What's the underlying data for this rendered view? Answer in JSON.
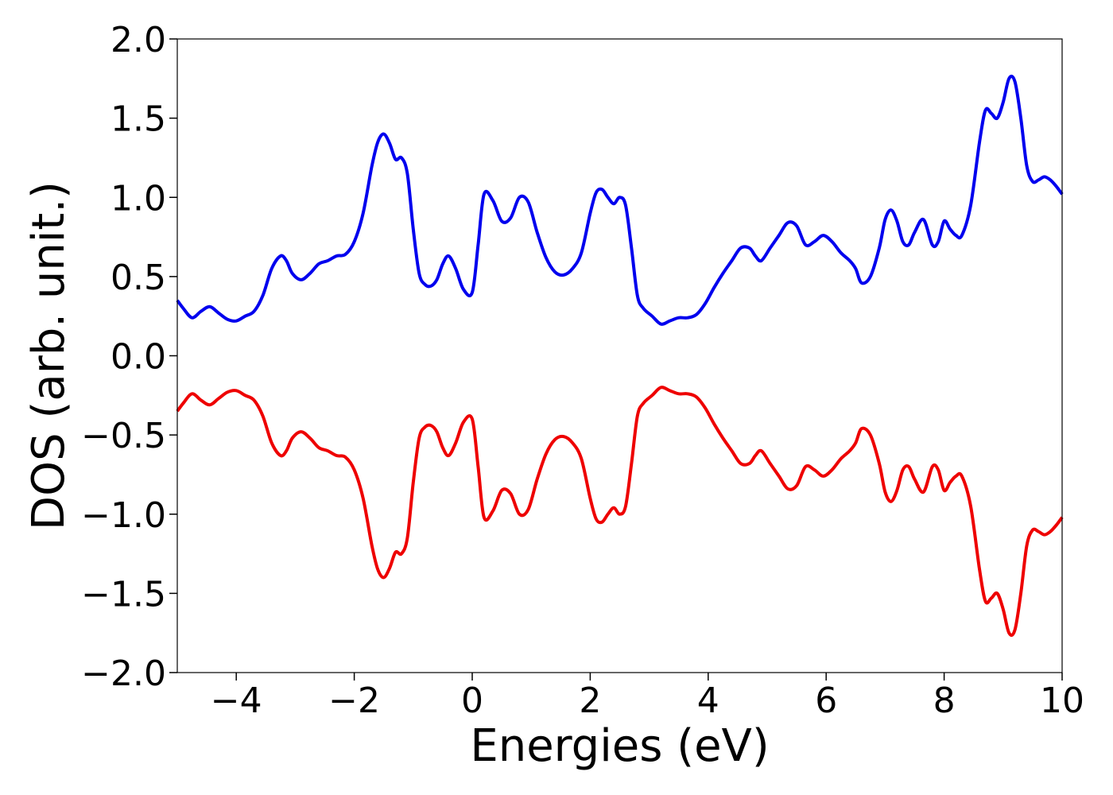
{
  "chart_data": {
    "type": "line",
    "title": "",
    "xlabel": "Energies (eV)",
    "ylabel": "DOS (arb. unit.)",
    "xlim": [
      -5,
      10
    ],
    "ylim": [
      -2.0,
      2.0
    ],
    "xticks": [
      -4,
      -2,
      0,
      2,
      4,
      6,
      8,
      10
    ],
    "xtick_labels": [
      "−4",
      "−2",
      "0",
      "2",
      "4",
      "6",
      "8",
      "10"
    ],
    "yticks": [
      2.0,
      1.5,
      1.0,
      0.5,
      0.0,
      -0.5,
      -1.0,
      -1.5,
      -2.0
    ],
    "ytick_labels": [
      "2.0",
      "1.5",
      "1.0",
      "0.5",
      "0.0",
      "−0.5",
      "−1.0",
      "−1.5",
      "−2.0"
    ],
    "grid": false,
    "legend": "none",
    "series": [
      {
        "color": "#0000ee",
        "x": [
          -5.0,
          -4.9,
          -4.75,
          -4.6,
          -4.45,
          -4.3,
          -4.15,
          -4.0,
          -3.85,
          -3.7,
          -3.55,
          -3.4,
          -3.25,
          -3.15,
          -3.05,
          -2.9,
          -2.75,
          -2.6,
          -2.45,
          -2.3,
          -2.15,
          -2.0,
          -1.85,
          -1.7,
          -1.6,
          -1.5,
          -1.4,
          -1.3,
          -1.2,
          -1.1,
          -1.0,
          -0.9,
          -0.8,
          -0.7,
          -0.6,
          -0.5,
          -0.4,
          -0.28,
          -0.15,
          0.0,
          0.1,
          0.2,
          0.35,
          0.5,
          0.65,
          0.8,
          0.95,
          1.1,
          1.25,
          1.4,
          1.55,
          1.7,
          1.85,
          2.0,
          2.1,
          2.2,
          2.3,
          2.4,
          2.5,
          2.6,
          2.7,
          2.8,
          2.9,
          3.05,
          3.2,
          3.35,
          3.5,
          3.65,
          3.8,
          3.95,
          4.1,
          4.25,
          4.4,
          4.55,
          4.7,
          4.8,
          4.9,
          5.05,
          5.2,
          5.35,
          5.5,
          5.65,
          5.8,
          5.95,
          6.1,
          6.25,
          6.4,
          6.5,
          6.6,
          6.75,
          6.9,
          7.0,
          7.1,
          7.2,
          7.3,
          7.4,
          7.5,
          7.65,
          7.8,
          7.9,
          8.0,
          8.1,
          8.2,
          8.3,
          8.45,
          8.6,
          8.7,
          8.8,
          8.9,
          9.0,
          9.1,
          9.2,
          9.3,
          9.4,
          9.5,
          9.6,
          9.7,
          9.8,
          9.9,
          10.0
        ],
        "y": [
          0.35,
          0.3,
          0.24,
          0.28,
          0.31,
          0.27,
          0.23,
          0.22,
          0.25,
          0.28,
          0.38,
          0.55,
          0.63,
          0.6,
          0.52,
          0.48,
          0.52,
          0.58,
          0.6,
          0.63,
          0.64,
          0.72,
          0.9,
          1.2,
          1.35,
          1.4,
          1.34,
          1.24,
          1.25,
          1.15,
          0.8,
          0.52,
          0.45,
          0.44,
          0.48,
          0.58,
          0.63,
          0.55,
          0.42,
          0.4,
          0.7,
          1.02,
          0.98,
          0.85,
          0.87,
          1.0,
          0.97,
          0.78,
          0.62,
          0.53,
          0.51,
          0.55,
          0.65,
          0.9,
          1.03,
          1.05,
          1.0,
          0.96,
          1.0,
          0.95,
          0.68,
          0.38,
          0.3,
          0.25,
          0.2,
          0.22,
          0.24,
          0.24,
          0.26,
          0.33,
          0.43,
          0.52,
          0.6,
          0.68,
          0.68,
          0.63,
          0.6,
          0.68,
          0.76,
          0.84,
          0.82,
          0.7,
          0.72,
          0.76,
          0.72,
          0.65,
          0.6,
          0.55,
          0.46,
          0.5,
          0.68,
          0.86,
          0.92,
          0.85,
          0.72,
          0.7,
          0.78,
          0.86,
          0.7,
          0.72,
          0.85,
          0.8,
          0.76,
          0.76,
          0.95,
          1.35,
          1.55,
          1.53,
          1.5,
          1.6,
          1.75,
          1.73,
          1.5,
          1.2,
          1.1,
          1.11,
          1.13,
          1.11,
          1.07,
          1.02
        ]
      },
      {
        "color": "#ee0000",
        "x": [
          -5.0,
          -4.9,
          -4.75,
          -4.6,
          -4.45,
          -4.3,
          -4.15,
          -4.0,
          -3.85,
          -3.7,
          -3.55,
          -3.4,
          -3.25,
          -3.15,
          -3.05,
          -2.9,
          -2.75,
          -2.6,
          -2.45,
          -2.3,
          -2.15,
          -2.0,
          -1.85,
          -1.7,
          -1.6,
          -1.5,
          -1.4,
          -1.3,
          -1.2,
          -1.1,
          -1.0,
          -0.9,
          -0.8,
          -0.7,
          -0.6,
          -0.5,
          -0.4,
          -0.28,
          -0.15,
          0.0,
          0.1,
          0.2,
          0.35,
          0.5,
          0.65,
          0.8,
          0.95,
          1.1,
          1.25,
          1.4,
          1.55,
          1.7,
          1.85,
          2.0,
          2.1,
          2.2,
          2.3,
          2.4,
          2.5,
          2.6,
          2.7,
          2.8,
          2.9,
          3.05,
          3.2,
          3.35,
          3.5,
          3.65,
          3.8,
          3.95,
          4.1,
          4.25,
          4.4,
          4.55,
          4.7,
          4.8,
          4.9,
          5.05,
          5.2,
          5.35,
          5.5,
          5.65,
          5.8,
          5.95,
          6.1,
          6.25,
          6.4,
          6.5,
          6.6,
          6.75,
          6.9,
          7.0,
          7.1,
          7.2,
          7.3,
          7.4,
          7.5,
          7.65,
          7.8,
          7.9,
          8.0,
          8.1,
          8.2,
          8.3,
          8.45,
          8.6,
          8.7,
          8.8,
          8.9,
          9.0,
          9.1,
          9.2,
          9.3,
          9.4,
          9.5,
          9.6,
          9.7,
          9.8,
          9.9,
          10.0
        ],
        "y": [
          -0.35,
          -0.3,
          -0.24,
          -0.28,
          -0.31,
          -0.27,
          -0.23,
          -0.22,
          -0.25,
          -0.28,
          -0.38,
          -0.55,
          -0.63,
          -0.6,
          -0.52,
          -0.48,
          -0.52,
          -0.58,
          -0.6,
          -0.63,
          -0.64,
          -0.72,
          -0.9,
          -1.2,
          -1.35,
          -1.4,
          -1.34,
          -1.24,
          -1.25,
          -1.15,
          -0.8,
          -0.52,
          -0.45,
          -0.44,
          -0.48,
          -0.58,
          -0.63,
          -0.55,
          -0.42,
          -0.4,
          -0.7,
          -1.02,
          -0.98,
          -0.85,
          -0.87,
          -1.0,
          -0.97,
          -0.78,
          -0.62,
          -0.53,
          -0.51,
          -0.55,
          -0.65,
          -0.9,
          -1.03,
          -1.05,
          -1.0,
          -0.96,
          -1.0,
          -0.95,
          -0.68,
          -0.38,
          -0.3,
          -0.25,
          -0.2,
          -0.22,
          -0.24,
          -0.24,
          -0.26,
          -0.33,
          -0.43,
          -0.52,
          -0.6,
          -0.68,
          -0.68,
          -0.63,
          -0.6,
          -0.68,
          -0.76,
          -0.84,
          -0.82,
          -0.7,
          -0.72,
          -0.76,
          -0.72,
          -0.65,
          -0.6,
          -0.55,
          -0.46,
          -0.5,
          -0.68,
          -0.86,
          -0.92,
          -0.85,
          -0.72,
          -0.7,
          -0.78,
          -0.86,
          -0.7,
          -0.72,
          -0.85,
          -0.8,
          -0.76,
          -0.76,
          -0.95,
          -1.35,
          -1.55,
          -1.53,
          -1.5,
          -1.6,
          -1.75,
          -1.73,
          -1.5,
          -1.2,
          -1.1,
          -1.11,
          -1.13,
          -1.11,
          -1.07,
          -1.02
        ]
      }
    ]
  }
}
